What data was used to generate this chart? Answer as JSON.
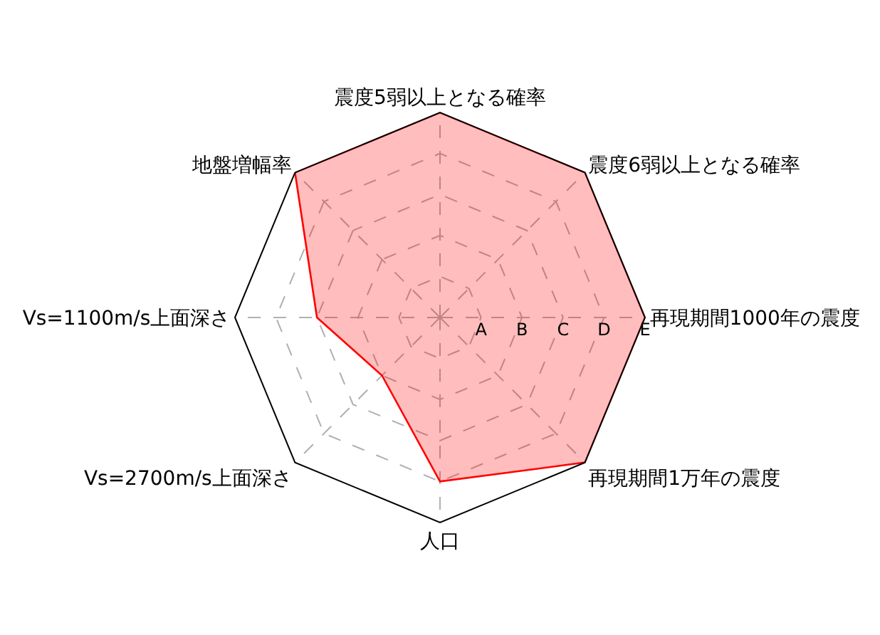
{
  "chart_data": {
    "type": "radar",
    "categories": [
      "震度5弱以上となる確率",
      "震度6弱以上となる確率",
      "再現期間1000年の震度",
      "再現期間1万年の震度",
      "人口",
      "Vs=2700m/s上面深さ",
      "Vs=1100m/s上面深さ",
      "地盤増幅率"
    ],
    "series": [
      {
        "color": "#ff0000",
        "values": [
          5,
          5,
          5,
          5,
          4,
          2,
          3,
          5
        ]
      }
    ],
    "ylim": [
      0,
      5
    ],
    "yticks": [
      {
        "value": 1,
        "label": "A"
      },
      {
        "value": 2,
        "label": "B"
      },
      {
        "value": 3,
        "label": "C"
      },
      {
        "value": 4,
        "label": "D"
      },
      {
        "value": 5,
        "label": "E"
      }
    ],
    "grid": true,
    "line_style": "solid",
    "marker": "none"
  }
}
